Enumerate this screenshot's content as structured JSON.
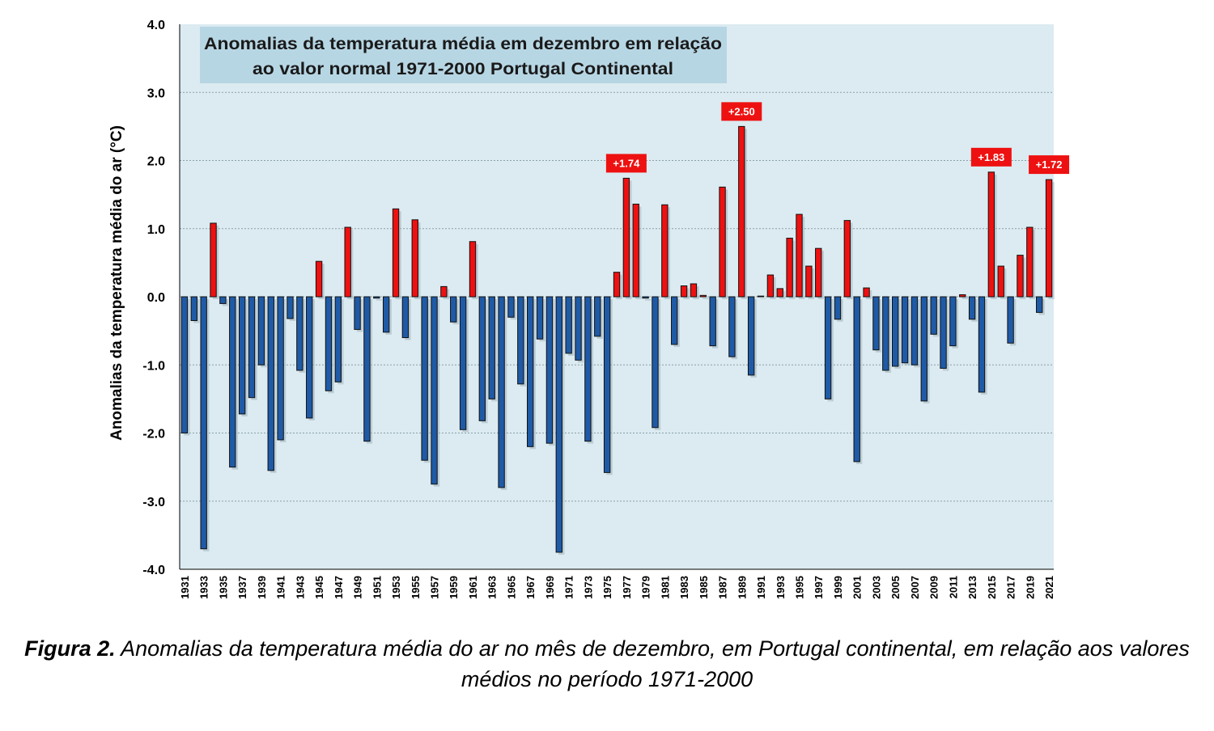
{
  "chart_data": {
    "type": "bar",
    "title": "Anomalias da temperatura média em dezembro em relação ao valor normal 1971-2000 Portugal Continental",
    "title_lines": [
      "Anomalias da temperatura média em dezembro em relação",
      "ao valor normal 1971-2000 Portugal Continental"
    ],
    "xlabel": "",
    "ylabel": "Anomalias da temperatura média do ar (°C)",
    "ylim": [
      -4.0,
      4.0
    ],
    "yticks": [
      "4.0",
      "3.0",
      "2.0",
      "1.0",
      "0.0",
      "-1.0",
      "-2.0",
      "-3.0",
      "-4.0"
    ],
    "grid": true,
    "legend": "none",
    "colors": {
      "positive": "#ee1111",
      "negative": "#1f5aa6",
      "plot_background": "#dcebf1",
      "title_box": "#b7d6e4",
      "label_box": "#ee1111"
    },
    "years": [
      1931,
      1932,
      1933,
      1934,
      1935,
      1936,
      1937,
      1938,
      1939,
      1940,
      1941,
      1942,
      1943,
      1944,
      1945,
      1946,
      1947,
      1948,
      1949,
      1950,
      1951,
      1952,
      1953,
      1954,
      1955,
      1956,
      1957,
      1958,
      1959,
      1960,
      1961,
      1962,
      1963,
      1964,
      1965,
      1966,
      1967,
      1968,
      1969,
      1970,
      1971,
      1972,
      1973,
      1974,
      1975,
      1976,
      1977,
      1978,
      1979,
      1980,
      1981,
      1982,
      1983,
      1984,
      1985,
      1986,
      1987,
      1988,
      1989,
      1990,
      1991,
      1992,
      1993,
      1994,
      1995,
      1996,
      1997,
      1998,
      1999,
      2000,
      2001,
      2002,
      2003,
      2004,
      2005,
      2006,
      2007,
      2008,
      2009,
      2010,
      2011,
      2012,
      2013,
      2014,
      2015,
      2016,
      2017,
      2018,
      2019,
      2020,
      2021
    ],
    "x_tick_labels": [
      "1931",
      "1933",
      "1935",
      "1937",
      "1939",
      "1941",
      "1943",
      "1945",
      "1947",
      "1949",
      "1951",
      "1953",
      "1955",
      "1957",
      "1959",
      "1961",
      "1963",
      "1965",
      "1967",
      "1969",
      "1971",
      "1973",
      "1975",
      "1977",
      "1979",
      "1981",
      "1983",
      "1985",
      "1987",
      "1989",
      "1991",
      "1993",
      "1995",
      "1997",
      "1999",
      "2001",
      "2003",
      "2005",
      "2007",
      "2009",
      "2011",
      "2013",
      "2015",
      "2017",
      "2019",
      "2021"
    ],
    "values": [
      -2.0,
      -0.35,
      -3.7,
      1.08,
      -0.1,
      -2.5,
      -1.72,
      -1.48,
      -1.0,
      -2.55,
      -2.1,
      -0.32,
      -1.08,
      -1.78,
      0.52,
      -1.38,
      -1.25,
      1.02,
      -0.48,
      -2.12,
      -0.02,
      -0.52,
      1.29,
      -0.6,
      1.13,
      -2.4,
      -2.75,
      0.15,
      -0.37,
      -1.95,
      0.81,
      -1.82,
      -1.5,
      -2.8,
      -0.3,
      -1.28,
      -2.2,
      -0.62,
      -2.15,
      -3.75,
      -0.83,
      -0.93,
      -2.12,
      -0.58,
      -2.58,
      0.36,
      1.74,
      1.36,
      -0.02,
      -1.92,
      1.35,
      -0.7,
      0.16,
      0.19,
      0.02,
      -0.72,
      1.61,
      -0.88,
      2.5,
      -1.15,
      0.01,
      0.32,
      0.12,
      0.86,
      1.21,
      0.45,
      0.71,
      -1.5,
      -0.33,
      1.12,
      -2.42,
      0.13,
      -0.78,
      -1.08,
      -1.02,
      -0.97,
      -1.0,
      -1.53,
      -0.55,
      -1.05,
      -0.72,
      0.03,
      -0.33,
      -1.4,
      1.83,
      0.45,
      -0.68,
      0.61,
      1.02,
      -0.23,
      1.72
    ],
    "annotations": [
      {
        "year": 1977,
        "text": "+1.74"
      },
      {
        "year": 1989,
        "text": "+2.50"
      },
      {
        "year": 2015,
        "text": "+1.83"
      },
      {
        "year": 2021,
        "text": "+1.72"
      }
    ]
  },
  "caption": {
    "label": "Figura 2.",
    "text": "Anomalias da temperatura média do ar no mês de dezembro, em Portugal continental, em relação aos valores médios no período 1971-2000"
  }
}
